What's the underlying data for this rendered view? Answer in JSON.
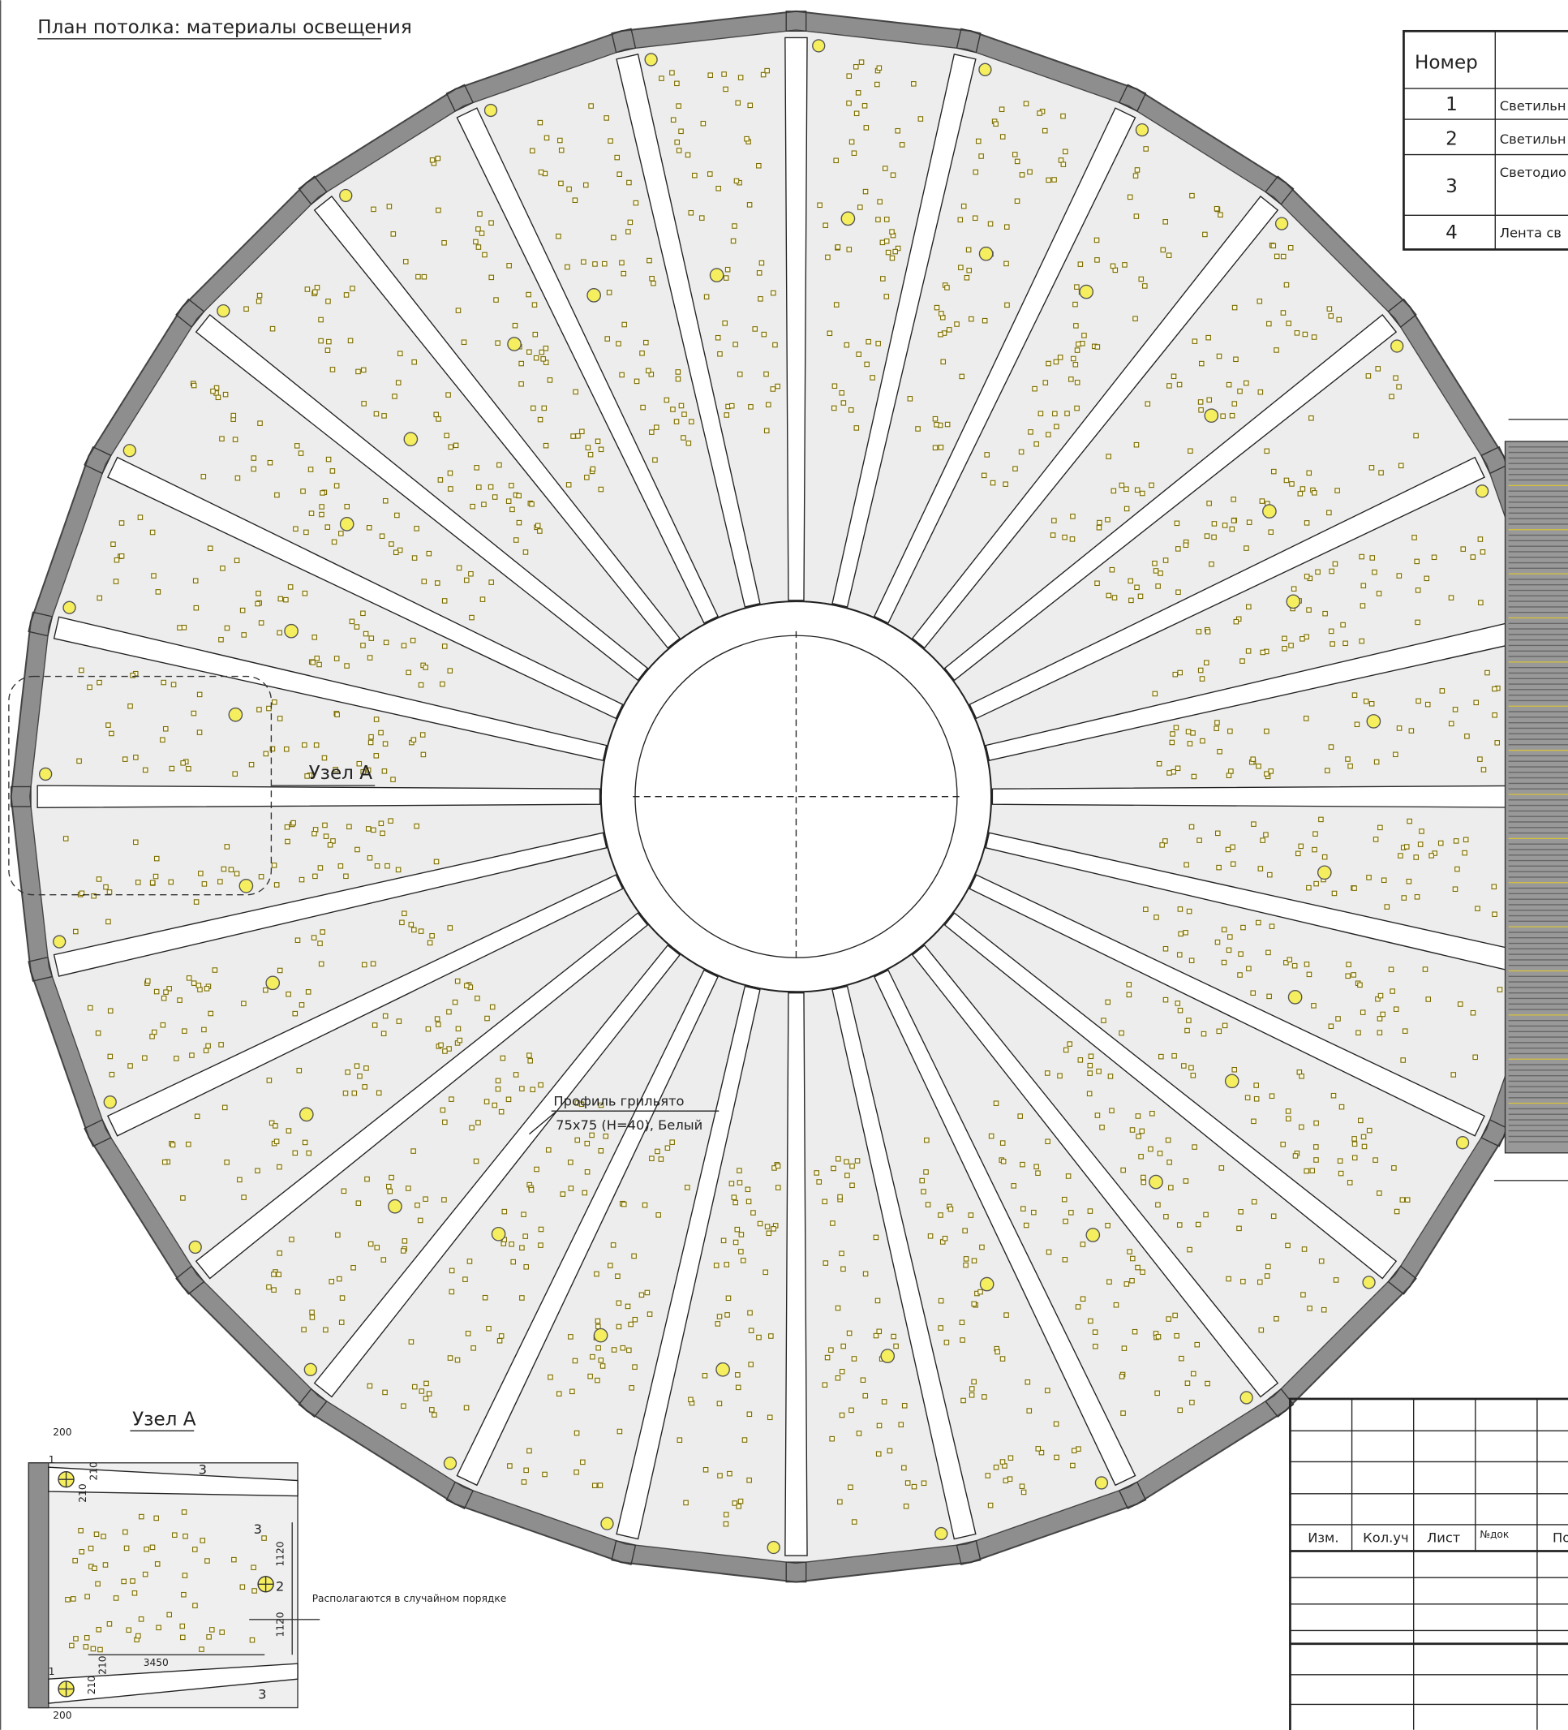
{
  "title": "План потолка: материалы освещения",
  "table": {
    "header": "Номер",
    "rows": [
      [
        "1",
        "Светильн"
      ],
      [
        "2",
        "Светильн"
      ],
      [
        "3",
        "Светодио"
      ],
      [
        "4",
        "Лента св"
      ]
    ]
  },
  "callouts": {
    "node": "Узел А",
    "profile": [
      "Профиль грильято",
      "75х75 (Н=40), Белый"
    ]
  },
  "detail": {
    "title": "Узел А",
    "dims": [
      "200",
      "210",
      "210",
      "1120",
      "1120",
      "3450",
      "210",
      "210",
      "200"
    ],
    "markers": [
      "1",
      "3",
      "3",
      "2",
      "1",
      "3"
    ],
    "note": "Располагаются в случайном порядке"
  },
  "title_block": {
    "headers": [
      "Изм.",
      "Кол.уч",
      "Лист",
      "№док",
      "По"
    ]
  }
}
